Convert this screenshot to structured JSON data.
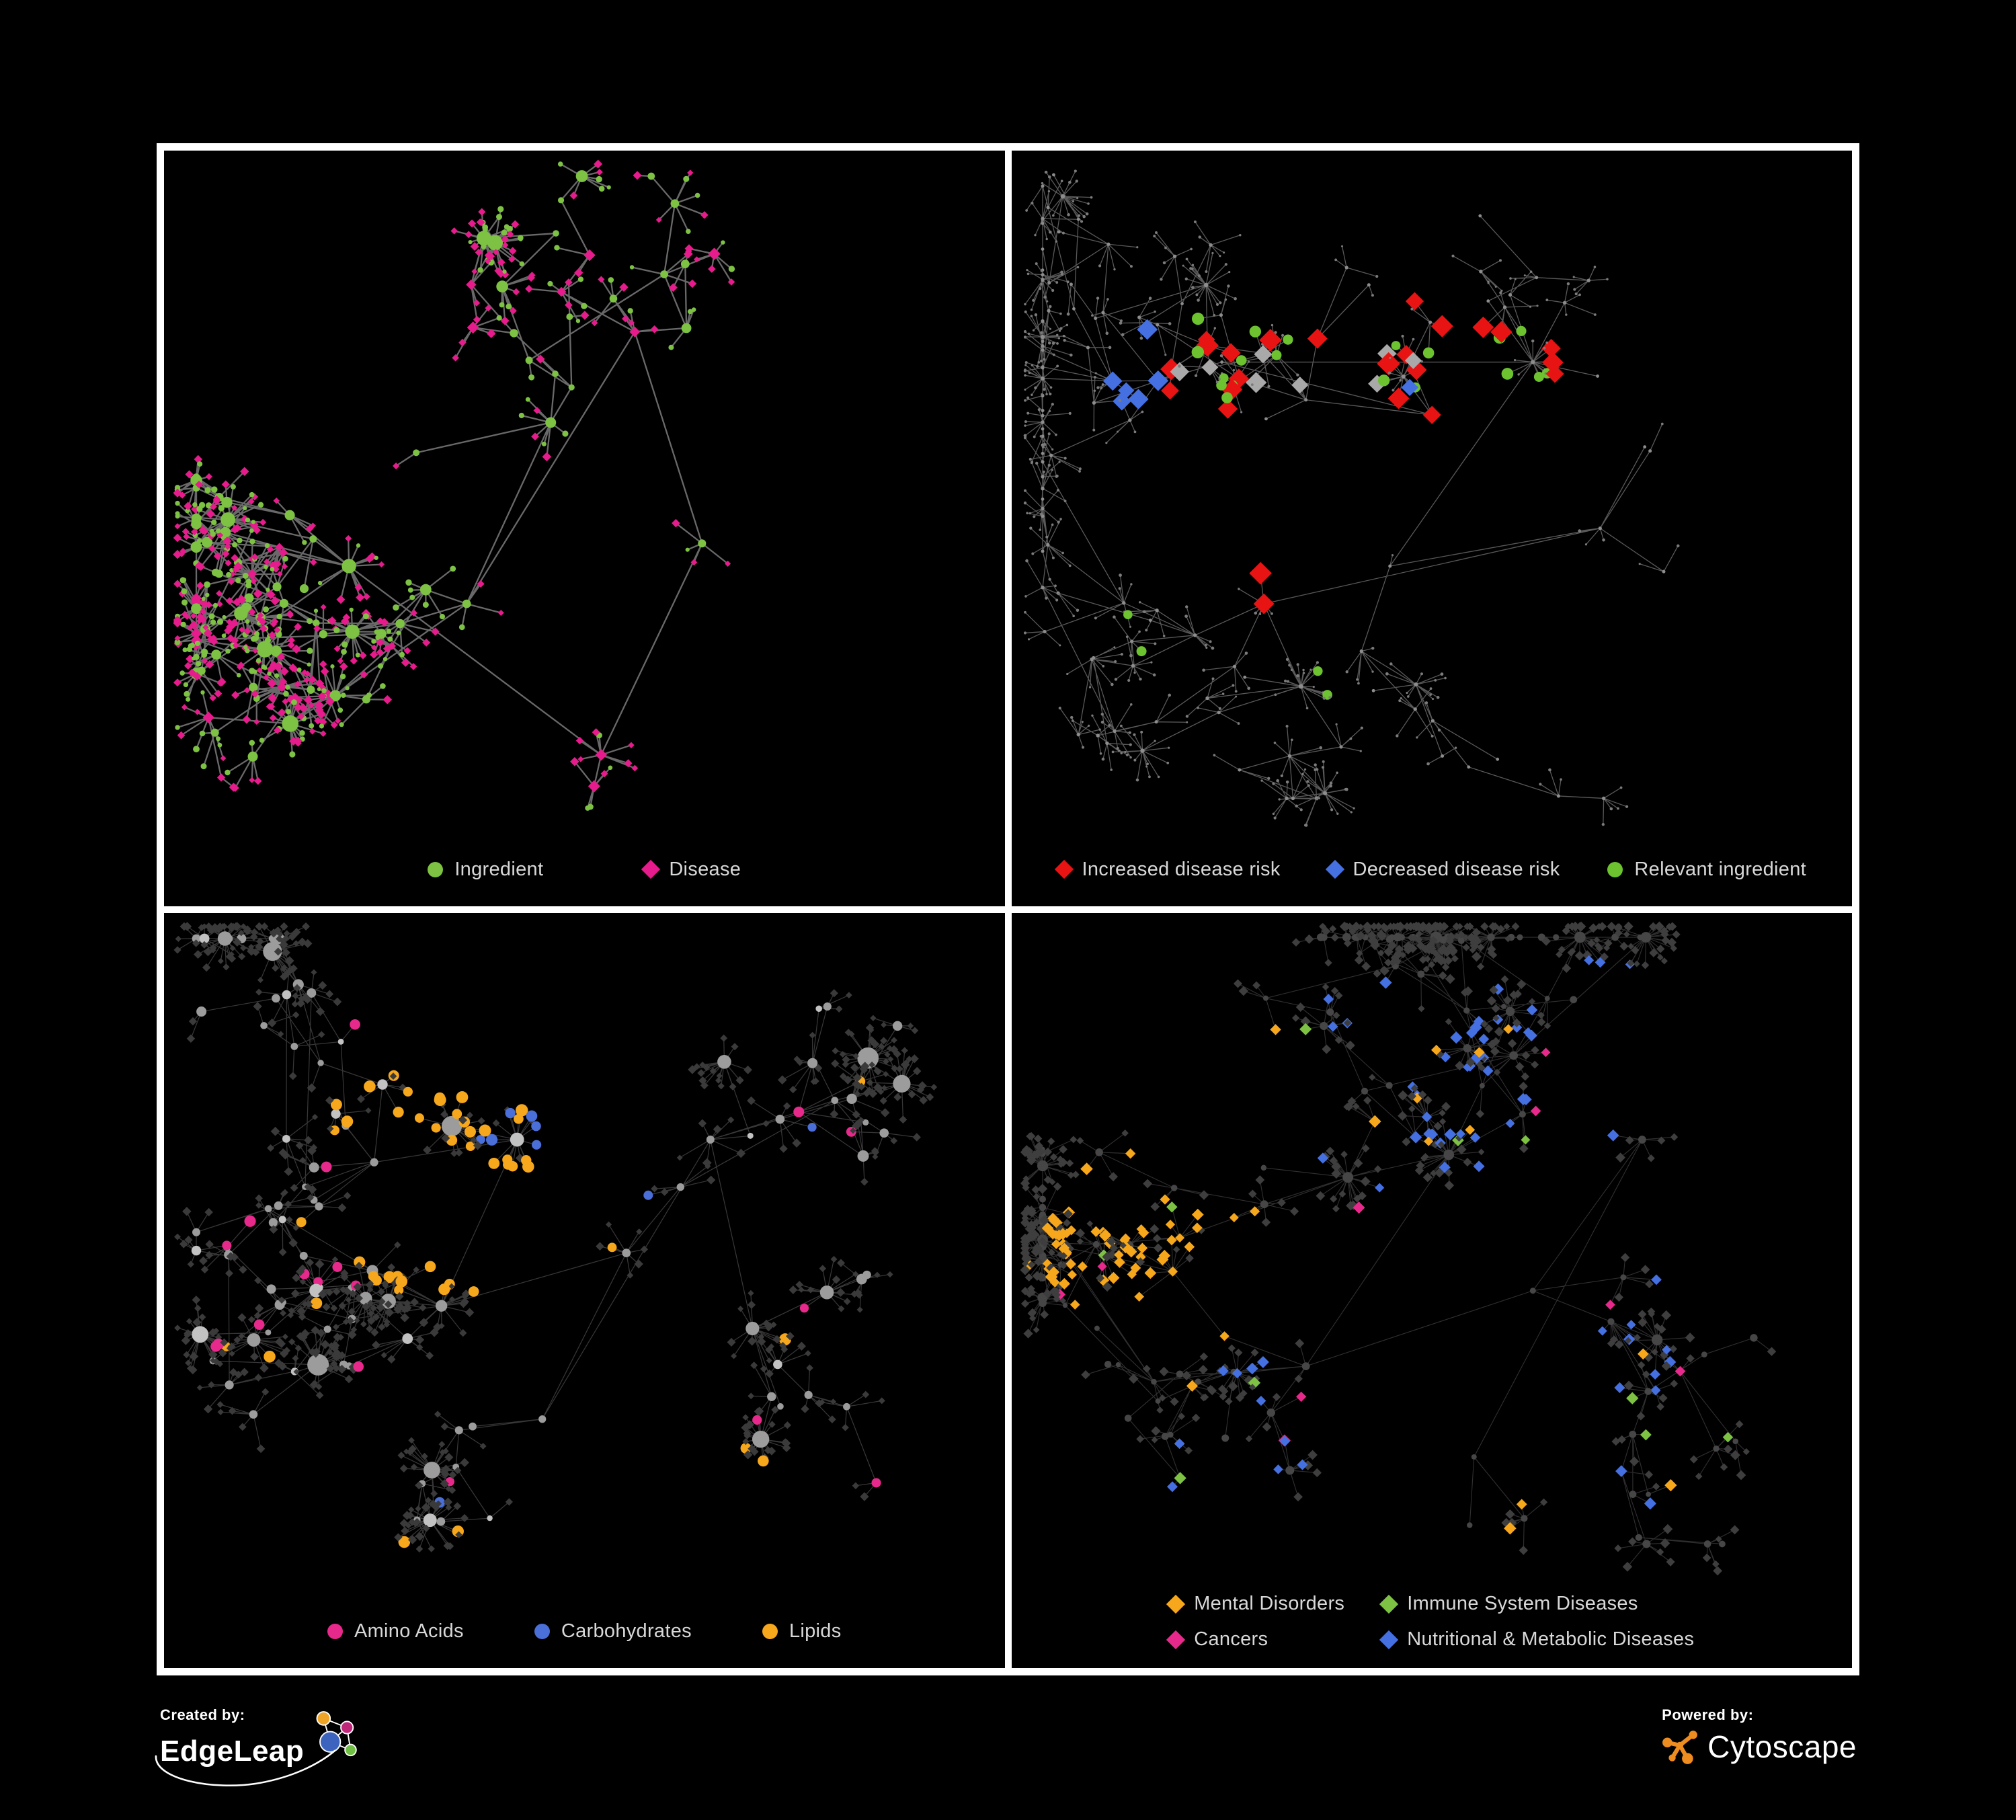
{
  "page": {
    "background": "#000000",
    "frame": "#ffffff",
    "legend_text_color": "#d8d8d8"
  },
  "panels": [
    {
      "id": "ingredient-disease",
      "legend": {
        "items": [
          {
            "shape": "circle",
            "color": "#7dc243",
            "label": "Ingredient"
          },
          {
            "shape": "diamond",
            "color": "#e61c8c",
            "label": "Disease"
          }
        ]
      },
      "network": {
        "seed": 9,
        "backbone": 100,
        "stepMin": 55,
        "stepMax": 132,
        "swirl": 2.7,
        "squash": 0.9,
        "cross": 12,
        "crossDist": 300,
        "bigP": 0.16,
        "bigMin": 10,
        "bigMax": 26,
        "leafP": 0.86,
        "smallMax": 7,
        "leafR": 40,
        "margin": [
          48,
          38,
          178
        ],
        "roots": [
          [
            0.3,
            0.4
          ],
          [
            0.46,
            0.36
          ],
          [
            0.36,
            0.6
          ],
          [
            0.56,
            0.24
          ],
          [
            0.64,
            0.52
          ],
          [
            0.52,
            0.8
          ],
          [
            0.22,
            0.55
          ]
        ],
        "edge": {
          "color": "#6f6f6f",
          "width": 2.3,
          "opacity": 0.95
        },
        "hubStyle": [
          {
            "shape": "circle",
            "color": "#7dc243",
            "r": 5.5,
            "rMax": 13,
            "w": 0.74,
            "jitter": true
          },
          {
            "shape": "diamond",
            "color": "#e61c8c",
            "r": 6,
            "w": 0.26,
            "jitter": true
          }
        ],
        "leafStyle": [
          {
            "shape": "diamond",
            "color": "#e61c8c",
            "r": 4.4,
            "w": 0.63,
            "jitter": true
          },
          {
            "shape": "circle",
            "color": "#7dc243",
            "r": 3.8,
            "w": 0.37,
            "jitter": true
          }
        ],
        "specials": []
      }
    },
    {
      "id": "disease-risk",
      "legend": {
        "items": [
          {
            "shape": "diamond",
            "color": "#e81414",
            "label": "Increased disease risk"
          },
          {
            "shape": "diamond",
            "color": "#4470e2",
            "label": "Decreased disease risk"
          },
          {
            "shape": "circle",
            "color": "#6cc32f",
            "label": "Relevant ingredient"
          }
        ]
      },
      "network": {
        "seed": 14,
        "backbone": 135,
        "stepMin": 62,
        "stepMax": 150,
        "swirl": 2.8,
        "squash": 0.92,
        "cross": 8,
        "crossDist": 320,
        "bigP": 0.1,
        "bigMin": 10,
        "bigMax": 22,
        "leafP": 0.8,
        "smallMax": 6,
        "leafR": 36,
        "margin": [
          46,
          36,
          160
        ],
        "roots": [
          [
            0.35,
            0.33
          ],
          [
            0.5,
            0.35
          ],
          [
            0.25,
            0.28
          ],
          [
            0.62,
            0.28
          ],
          [
            0.45,
            0.55
          ],
          [
            0.7,
            0.5
          ],
          [
            0.3,
            0.6
          ]
        ],
        "edge": {
          "color": "#5e5e5e",
          "width": 1.3,
          "opacity": 0.95
        },
        "hubStyle": [
          {
            "shape": "circle",
            "color": "#8d8d8d",
            "r": 2.4,
            "rMax": 3.6,
            "w": 1
          }
        ],
        "leafStyle": [
          {
            "shape": "circle",
            "color": "#7b7b7b",
            "r": 1.9,
            "w": 1,
            "jitter": true
          }
        ],
        "specials": [
          {
            "count": 22,
            "shape": "diamond",
            "color": "#e81414",
            "size": 12,
            "area": [
              0.42,
              0.32,
              0.27,
              0.14
            ]
          },
          {
            "count": 3,
            "shape": "diamond",
            "color": "#e81414",
            "size": 12,
            "area": [
              0.7,
              0.72,
              0.08,
              0.07
            ]
          },
          {
            "count": 2,
            "shape": "diamond",
            "color": "#e81414",
            "size": 12,
            "area": [
              0.3,
              0.56,
              0.1,
              0.06
            ]
          },
          {
            "count": 6,
            "shape": "diamond",
            "color": "#4470e2",
            "size": 11,
            "area": [
              0.17,
              0.33,
              0.07,
              0.1
            ]
          },
          {
            "count": 2,
            "shape": "diamond",
            "color": "#4470e2",
            "size": 11,
            "area": [
              0.84,
              0.33,
              0.05,
              0.04
            ]
          },
          {
            "count": 1,
            "shape": "diamond",
            "color": "#4470e2",
            "size": 11,
            "area": [
              0.46,
              0.34,
              0.05,
              0.05
            ]
          },
          {
            "count": 8,
            "shape": "diamond",
            "color": "#a9a9a9",
            "size": 11,
            "area": [
              0.4,
              0.38,
              0.3,
              0.13
            ]
          },
          {
            "count": 18,
            "shape": "circle",
            "color": "#6cc32f",
            "size": 8,
            "area": [
              0.41,
              0.33,
              0.3,
              0.15
            ]
          },
          {
            "count": 5,
            "shape": "circle",
            "color": "#6cc32f",
            "size": 7,
            "area": [
              0.5,
              0.52,
              0.45,
              0.4
            ]
          }
        ]
      }
    },
    {
      "id": "nutrient-classes",
      "legend": {
        "items": [
          {
            "shape": "circle",
            "color": "#e8298c",
            "label": "Amino Acids"
          },
          {
            "shape": "circle",
            "color": "#4a6fd8",
            "label": "Carbohydrates"
          },
          {
            "shape": "circle",
            "color": "#f6a71c",
            "label": "Lipids"
          }
        ]
      },
      "network": {
        "seed": 23,
        "backbone": 105,
        "stepMin": 55,
        "stepMax": 140,
        "swirl": 2.6,
        "squash": 0.92,
        "cross": 12,
        "crossDist": 300,
        "bigP": 0.21,
        "bigMin": 12,
        "bigMax": 30,
        "leafP": 0.86,
        "smallMax": 7,
        "leafR": 40,
        "margin": [
          48,
          38,
          170
        ],
        "roots": [
          [
            0.25,
            0.33
          ],
          [
            0.42,
            0.3
          ],
          [
            0.33,
            0.52
          ],
          [
            0.55,
            0.45
          ],
          [
            0.45,
            0.67
          ],
          [
            0.65,
            0.3
          ],
          [
            0.7,
            0.55
          ]
        ],
        "edge": {
          "color": "#a8a8a8",
          "width": 1.25,
          "opacity": 0.33
        },
        "hubStyle": [
          {
            "shape": "circle",
            "color": "#9c9c9c",
            "r": 5.5,
            "rMax": 13.5,
            "w": 0.78,
            "jitter": true
          },
          {
            "shape": "circle",
            "color": "#c2c2c2",
            "r": 5,
            "rMax": 11,
            "w": 0.22,
            "jitter": true
          }
        ],
        "leafStyle": [
          {
            "shape": "diamond",
            "color": "#3a3a3a",
            "r": 4.4,
            "w": 1,
            "jitter": true
          }
        ],
        "specials": [
          {
            "count": 26,
            "shape": "circle",
            "color": "#f6a71c",
            "size": 8,
            "area": [
              0.33,
              0.27,
              0.13,
              0.12
            ]
          },
          {
            "count": 10,
            "shape": "circle",
            "color": "#f6a71c",
            "size": 8,
            "area": [
              0.31,
              0.43,
              0.1,
              0.08
            ]
          },
          {
            "count": 12,
            "shape": "circle",
            "color": "#f6a71c",
            "size": 8,
            "area": [
              0.5,
              0.5,
              0.48,
              0.45
            ]
          },
          {
            "count": 6,
            "shape": "circle",
            "color": "#4a6fd8",
            "size": 7.5,
            "area": [
              0.36,
              0.29,
              0.1,
              0.08
            ]
          },
          {
            "count": 3,
            "shape": "circle",
            "color": "#4a6fd8",
            "size": 7.5,
            "area": [
              0.58,
              0.55,
              0.38,
              0.33
            ]
          },
          {
            "count": 18,
            "shape": "circle",
            "color": "#e8298c",
            "size": 7.5,
            "area": [
              0.5,
              0.5,
              0.47,
              0.45
            ],
            "inner": 0.5
          }
        ]
      }
    },
    {
      "id": "disease-categories",
      "legend": {
        "items": [
          {
            "shape": "diamond",
            "color": "#f6a71c",
            "label": "Mental Disorders"
          },
          {
            "shape": "diamond",
            "color": "#7dc243",
            "label": "Immune System Diseases"
          },
          {
            "shape": "diamond",
            "color": "#e8298c",
            "label": "Cancers"
          },
          {
            "shape": "diamond",
            "color": "#4470e2",
            "label": "Nutritional & Metabolic Diseases"
          }
        ]
      },
      "network": {
        "seed": 33,
        "backbone": 125,
        "stepMin": 55,
        "stepMax": 140,
        "swirl": 2.7,
        "squash": 0.92,
        "cross": 14,
        "crossDist": 320,
        "bigP": 0.17,
        "bigMin": 10,
        "bigMax": 26,
        "leafP": 0.86,
        "smallMax": 7,
        "leafR": 38,
        "margin": [
          46,
          36,
          185
        ],
        "roots": [
          [
            0.2,
            0.43
          ],
          [
            0.4,
            0.35
          ],
          [
            0.52,
            0.32
          ],
          [
            0.35,
            0.6
          ],
          [
            0.62,
            0.5
          ],
          [
            0.75,
            0.3
          ],
          [
            0.55,
            0.72
          ]
        ],
        "edge": {
          "color": "#b4b4b4",
          "width": 1.15,
          "opacity": 0.26
        },
        "hubStyle": [
          {
            "shape": "circle",
            "color": "#464646",
            "r": 4.5,
            "rMax": 7.5,
            "w": 1,
            "jitter": true
          }
        ],
        "leafStyle": [
          {
            "shape": "diamond",
            "color": "#3e3e3e",
            "r": 4.8,
            "w": 1,
            "jitter": true
          }
        ],
        "specials": [
          {
            "count": 60,
            "shape": "diamond",
            "color": "#f6a71c",
            "size": 6.5,
            "area": [
              0.17,
              0.44,
              0.13,
              0.13
            ]
          },
          {
            "count": 16,
            "shape": "diamond",
            "color": "#f6a71c",
            "size": 6.5,
            "area": [
              0.46,
              0.5,
              0.45,
              0.42
            ]
          },
          {
            "count": 38,
            "shape": "diamond",
            "color": "#e8298c",
            "size": 6.5,
            "area": [
              0.46,
              0.5,
              0.14,
              0.12
            ]
          },
          {
            "count": 6,
            "shape": "diamond",
            "color": "#e8298c",
            "size": 6.5,
            "area": [
              0.92,
              0.23,
              0.06,
              0.06
            ]
          },
          {
            "count": 8,
            "shape": "diamond",
            "color": "#e8298c",
            "size": 6.5,
            "area": [
              0.5,
              0.55,
              0.45,
              0.4
            ]
          },
          {
            "count": 42,
            "shape": "diamond",
            "color": "#4470e2",
            "size": 6.5,
            "area": [
              0.7,
              0.4,
              0.27,
              0.34
            ]
          },
          {
            "count": 12,
            "shape": "diamond",
            "color": "#4470e2",
            "size": 6.5,
            "area": [
              0.42,
              0.76,
              0.35,
              0.18
            ]
          },
          {
            "count": 10,
            "shape": "diamond",
            "color": "#4470e2",
            "size": 6.5,
            "area": [
              0.32,
              0.2,
              0.25,
              0.14
            ]
          },
          {
            "count": 10,
            "shape": "diamond",
            "color": "#7dc243",
            "size": 6.5,
            "area": [
              0.5,
              0.5,
              0.42,
              0.4
            ]
          }
        ]
      }
    }
  ],
  "footer": {
    "created": {
      "label": "Created by:",
      "brand": "EdgeLeap",
      "colors": {
        "orange": "#eda427",
        "magenta": "#bf2579",
        "blue": "#3c63bd",
        "green": "#70bf44",
        "line": "#ffffff"
      }
    },
    "powered": {
      "label": "Powered by:",
      "brand": "Cytoscape",
      "color": "#ef8c1f"
    }
  }
}
